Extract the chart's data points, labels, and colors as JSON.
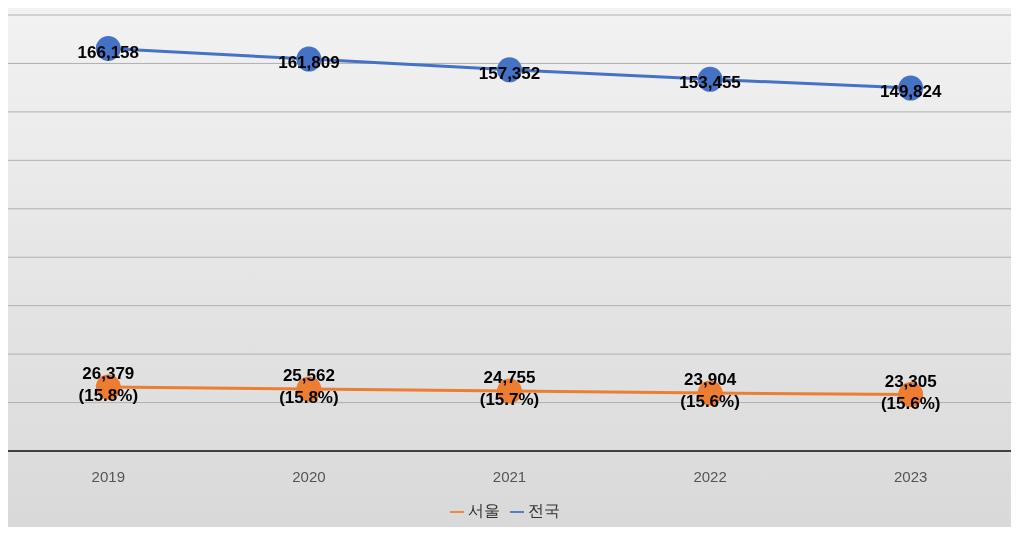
{
  "chart_data": {
    "type": "line",
    "categories": [
      "2019",
      "2020",
      "2021",
      "2022",
      "2023"
    ],
    "series": [
      {
        "name": "전국",
        "color": "#4472c4",
        "values": [
          166158,
          161809,
          157352,
          153455,
          149824
        ],
        "value_labels": [
          "166,158",
          "161,809",
          "157,352",
          "153,455",
          "149,824"
        ]
      },
      {
        "name": "서울",
        "color": "#ed7d31",
        "values": [
          26379,
          25562,
          24755,
          23904,
          23305
        ],
        "value_labels": [
          "26,379\n(15.8%)",
          "25,562\n(15.8%)",
          "24,755\n(15.7%)",
          "23,904\n(15.6%)",
          "23,305\n(15.6%)"
        ]
      }
    ],
    "ylim": [
      0,
      180000
    ],
    "yticks": [
      {
        "value": 0,
        "label": null
      },
      {
        "value": 20000,
        "label": null
      },
      {
        "value": 40000,
        "label": null
      },
      {
        "value": 60000,
        "label": null
      },
      {
        "value": 80000,
        "label": null
      },
      {
        "value": 100000,
        "label": null
      },
      {
        "value": 120000,
        "label": null
      },
      {
        "value": 140000,
        "label": null
      },
      {
        "value": 160000,
        "label": null
      },
      {
        "value": 180000,
        "label": null
      }
    ],
    "tick_labels": "x",
    "grid": "y",
    "legend": "bottom",
    "marker": "circle",
    "line_style": "solid"
  }
}
